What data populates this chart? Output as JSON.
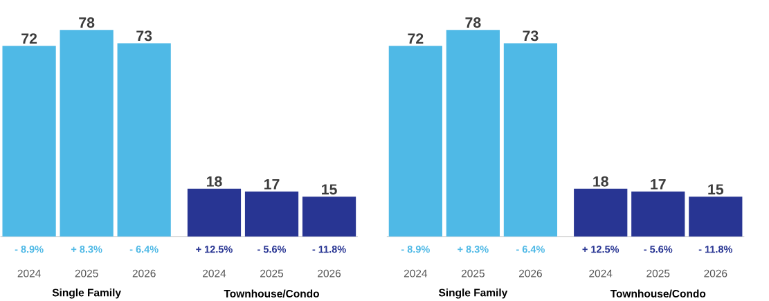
{
  "chart_data": [
    {
      "type": "bar",
      "categories": [
        "2024",
        "2025",
        "2026",
        "2024",
        "2025",
        "2026"
      ],
      "values": [
        72,
        78,
        73,
        18,
        17,
        15
      ],
      "colors": [
        "#4fb9e6",
        "#4fb9e6",
        "#4fb9e6",
        "#283593",
        "#283593",
        "#283593"
      ],
      "data_labels": true,
      "annotations": [
        "- 8.9%",
        "+ 8.3%",
        "- 6.4%",
        "+ 12.5%",
        "- 5.6%",
        "- 11.8%",
        "Single Family",
        "Townhouse/Condo"
      ]
    },
    {
      "type": "bar",
      "categories": [
        "2024",
        "2025",
        "2026",
        "2024",
        "2025",
        "2026"
      ],
      "values": [
        72,
        78,
        73,
        18,
        17,
        15
      ],
      "colors": [
        "#4fb9e6",
        "#4fb9e6",
        "#4fb9e6",
        "#283593",
        "#283593",
        "#283593"
      ],
      "data_labels": true,
      "annotations": [
        "- 8.9%",
        "+ 8.3%",
        "- 6.4%",
        "+ 12.5%",
        "- 5.6%",
        "- 11.8%",
        "Single Family",
        "Townhouse/Condo"
      ]
    }
  ]
}
